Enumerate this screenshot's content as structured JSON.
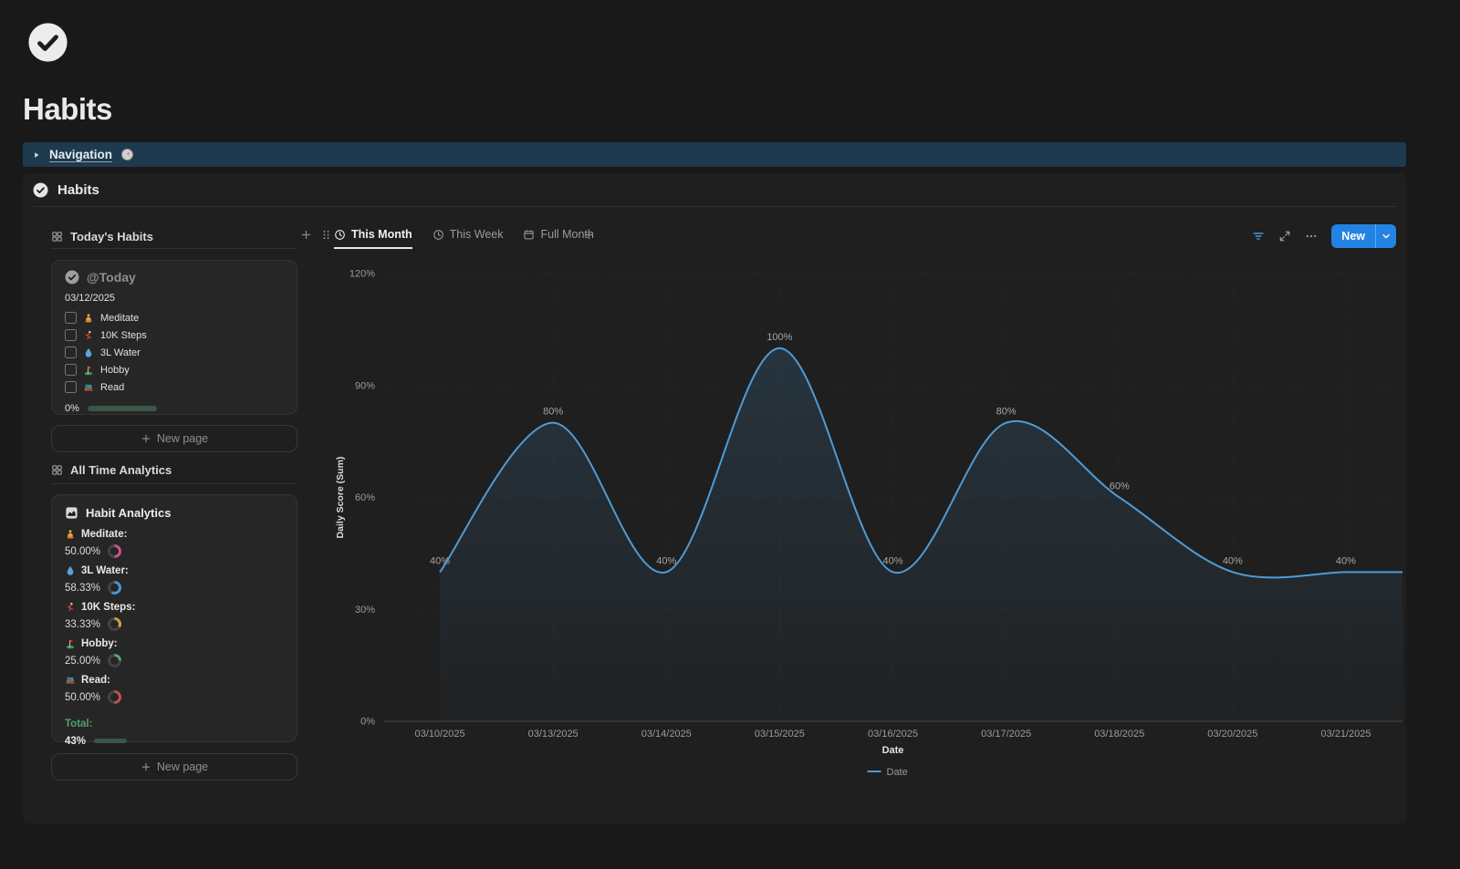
{
  "page": {
    "title": "Habits"
  },
  "callout": {
    "label": "Navigation"
  },
  "section": {
    "title": "Habits"
  },
  "left_panel": {
    "collection1_title": "Today's Habits",
    "today_card": {
      "title": "@Today",
      "date": "03/12/2025",
      "habits": [
        {
          "icon": "meditate-icon",
          "label": "Meditate"
        },
        {
          "icon": "runner-icon",
          "label": "10K Steps"
        },
        {
          "icon": "droplet-icon",
          "label": "3L Water"
        },
        {
          "icon": "golf-icon",
          "label": "Hobby"
        },
        {
          "icon": "books-icon",
          "label": "Read"
        }
      ],
      "progress_label": "0%",
      "progress_pct": 0
    },
    "new_page_label": "New page",
    "collection2_title": "All Time Analytics",
    "analytics_card": {
      "title": "Habit Analytics",
      "stats": [
        {
          "icon": "meditate-icon",
          "label": "Meditate:",
          "value": "50.00%",
          "pct": 50,
          "color": "#c9548f"
        },
        {
          "icon": "droplet-icon",
          "label": "3L Water:",
          "value": "58.33%",
          "pct": 58.33,
          "color": "#4596d6"
        },
        {
          "icon": "runner-icon",
          "label": "10K Steps:",
          "value": "33.33%",
          "pct": 33.33,
          "color": "#d3a13f"
        },
        {
          "icon": "golf-icon",
          "label": "Hobby:",
          "value": "25.00%",
          "pct": 25,
          "color": "#54a86e"
        },
        {
          "icon": "books-icon",
          "label": "Read:",
          "value": "50.00%",
          "pct": 50,
          "color": "#c4524a"
        }
      ],
      "total_label": "Total:",
      "total_value": "43%",
      "total_pct": 43
    }
  },
  "toolbar": {
    "tabs": [
      {
        "icon": "clock-icon",
        "label": "This Month",
        "active": true
      },
      {
        "icon": "clock-icon",
        "label": "This Week",
        "active": false
      },
      {
        "icon": "calendar-icon",
        "label": "Full Month",
        "active": false
      }
    ],
    "new_button_label": "New"
  },
  "chart_data": {
    "type": "line",
    "title": "",
    "categories": [
      "03/10/2025",
      "03/13/2025",
      "03/14/2025",
      "03/15/2025",
      "03/16/2025",
      "03/17/2025",
      "03/18/2025",
      "03/20/2025",
      "03/21/2025"
    ],
    "values": [
      40,
      80,
      40,
      100,
      40,
      80,
      60,
      40,
      40
    ],
    "point_labels": [
      "40%",
      "80%",
      "40%",
      "100%",
      "40%",
      "80%",
      "60%",
      "40%",
      "40%"
    ],
    "xlabel": "Date",
    "ylabel": "Daily Score (Sum)",
    "ylim": [
      0,
      120
    ],
    "yticks": [
      0,
      30,
      60,
      90,
      120
    ],
    "ytick_labels": [
      "0%",
      "30%",
      "60%",
      "90%",
      "120%"
    ],
    "legend": [
      {
        "label": "Date",
        "color": "#4f9bd6"
      }
    ],
    "legend_position": "bottom",
    "line_color": "#4f9bd6",
    "grid": true,
    "smooth": true,
    "area": true
  }
}
